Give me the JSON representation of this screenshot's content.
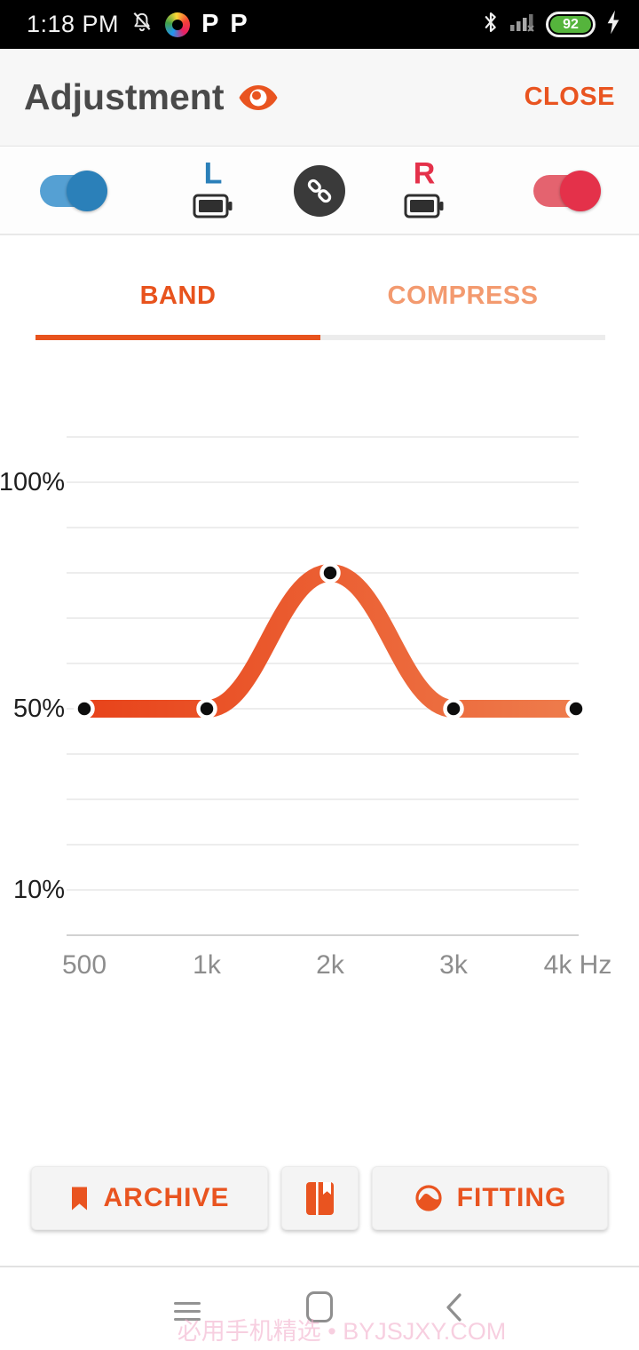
{
  "status_bar": {
    "time": "1:18 PM",
    "p_glyph": "P",
    "battery_percent": "92"
  },
  "header": {
    "title": "Adjustment",
    "close_label": "CLOSE"
  },
  "device_row": {
    "left_label": "L",
    "right_label": "R",
    "left_toggle_on": true,
    "right_toggle_on": true,
    "left_color": "#2b80b9",
    "right_color": "#e4314a"
  },
  "tabs": {
    "items": [
      {
        "label": "BAND",
        "active": true
      },
      {
        "label": "COMPRESS",
        "active": false
      }
    ]
  },
  "chart_data": {
    "type": "line",
    "title": "",
    "x_unit": "Hz",
    "x": [
      500,
      1000,
      2000,
      3000,
      4000
    ],
    "x_tick_labels": [
      "500",
      "1k",
      "2k",
      "3k",
      "4k Hz"
    ],
    "series": [
      {
        "name": "band-gain",
        "values_percent": [
          50,
          50,
          80,
          50,
          50
        ]
      }
    ],
    "y_tick_labels": [
      {
        "value": 100,
        "label": "100%"
      },
      {
        "value": 50,
        "label": "50%"
      },
      {
        "value": 10,
        "label": "10%"
      }
    ],
    "ylim_percent": [
      0,
      110
    ],
    "grid": true,
    "grid_color": "#ededed",
    "axis_color": "#d2d2d2",
    "line_gradient": [
      "#e8431a",
      "#ee7c4c"
    ],
    "point_color": "#0d0d0d",
    "point_border": "#ffffff"
  },
  "footer": {
    "archive_label": "ARCHIVE",
    "fitting_label": "FITTING"
  },
  "accent_color": "#e95420",
  "watermark": "必用手机精选 • BYJSJXY.COM"
}
